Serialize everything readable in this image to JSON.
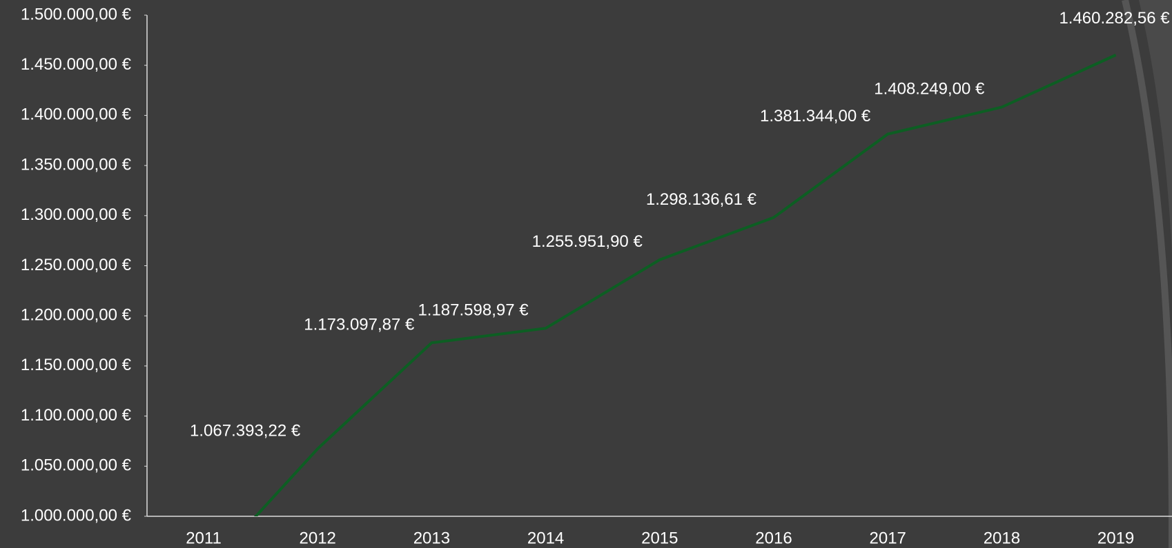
{
  "chart_data": {
    "type": "line",
    "categories": [
      "2011",
      "2012",
      "2013",
      "2014",
      "2015",
      "2016",
      "2017",
      "2018",
      "2019"
    ],
    "series": [
      {
        "name": null,
        "color": "#0d5e23",
        "values": [
          943000,
          1067393.22,
          1173097.87,
          1187598.97,
          1255951.9,
          1298136.61,
          1381344.0,
          1408249.0,
          1460282.56
        ],
        "value_labels": [
          null,
          "1.067.393,22 €",
          "1.173.097,87 €",
          "1.187.598,97 €",
          "1.255.951,90 €",
          "1.298.136,61 €",
          "1.381.344,00 €",
          "1.408.249,00 €",
          "1.460.282,56 €"
        ]
      }
    ],
    "ylim": [
      1000000,
      1500000
    ],
    "yticks": [
      {
        "value": 1000000,
        "label": "1.000.000,00 €"
      },
      {
        "value": 1050000,
        "label": "1.050.000,00 €"
      },
      {
        "value": 1100000,
        "label": "1.100.000,00 €"
      },
      {
        "value": 1150000,
        "label": "1.150.000,00 €"
      },
      {
        "value": 1200000,
        "label": "1.200.000,00 €"
      },
      {
        "value": 1250000,
        "label": "1.250.000,00 €"
      },
      {
        "value": 1300000,
        "label": "1.300.000,00 €"
      },
      {
        "value": 1350000,
        "label": "1.350.000,00 €"
      },
      {
        "value": 1400000,
        "label": "1.400.000,00 €"
      },
      {
        "value": 1450000,
        "label": "1.450.000,00 €"
      },
      {
        "value": 1500000,
        "label": "1.500.000,00 €"
      }
    ],
    "grid": false
  }
}
